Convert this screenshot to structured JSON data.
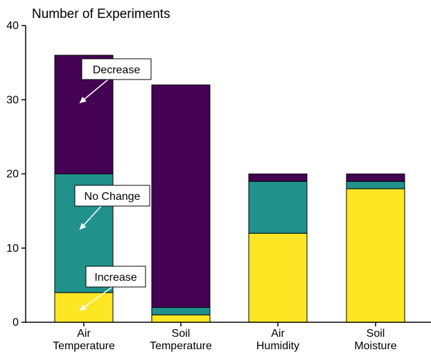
{
  "chart_data": {
    "type": "bar",
    "stacked": true,
    "title": "Number of Experiments",
    "xlabel": "",
    "ylabel": "",
    "ylim": [
      0,
      40
    ],
    "yticks": [
      0,
      10,
      20,
      30,
      40
    ],
    "categories": [
      [
        "Air",
        "Temperature"
      ],
      [
        "Soil",
        "Temperature"
      ],
      [
        "Air",
        "Humidity"
      ],
      [
        "Soil",
        "Moisture"
      ]
    ],
    "series": [
      {
        "name": "Increase",
        "color": "#fde725",
        "values": [
          4,
          1,
          12,
          18
        ]
      },
      {
        "name": "No Change",
        "color": "#21918c",
        "values": [
          16,
          1,
          7,
          1
        ]
      },
      {
        "name": "Decrease",
        "color": "#440154",
        "values": [
          16,
          30,
          1,
          1
        ]
      }
    ],
    "annotations": [
      {
        "text": "Decrease",
        "category": 0,
        "series": 2
      },
      {
        "text": "No Change",
        "category": 0,
        "series": 1
      },
      {
        "text": "Increase",
        "category": 0,
        "series": 0
      }
    ]
  }
}
